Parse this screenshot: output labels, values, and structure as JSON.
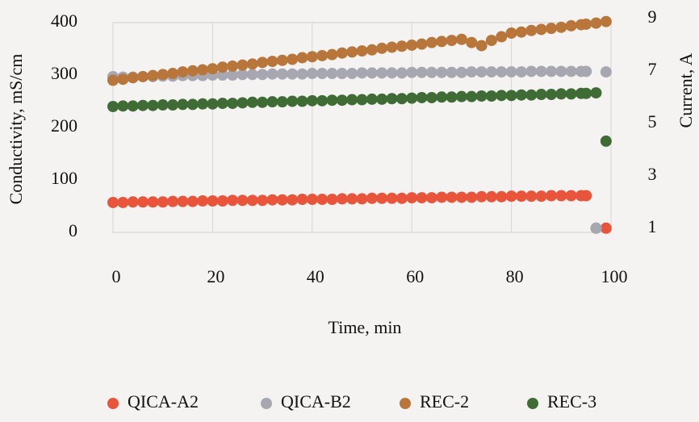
{
  "chart_data": {
    "type": "scatter",
    "x_label": "Time, min",
    "y_label": "Conductivity, mS/cm",
    "y2_label": "Current, A",
    "x": [
      0,
      2,
      4,
      6,
      8,
      10,
      12,
      14,
      16,
      18,
      20,
      22,
      24,
      26,
      28,
      30,
      32,
      34,
      36,
      38,
      40,
      42,
      44,
      46,
      48,
      50,
      52,
      54,
      56,
      58,
      60,
      62,
      64,
      66,
      68,
      70,
      72,
      74,
      76,
      78,
      80,
      82,
      84,
      86,
      88,
      90,
      92,
      94,
      95,
      97,
      99
    ],
    "series": [
      {
        "name": "QICA-A2",
        "color": "#e8553a",
        "values": [
          57,
          57,
          58,
          58,
          58,
          58,
          59,
          59,
          59,
          60,
          60,
          60,
          61,
          61,
          61,
          61,
          62,
          62,
          62,
          63,
          63,
          63,
          63,
          64,
          64,
          64,
          65,
          65,
          65,
          65,
          66,
          66,
          66,
          67,
          67,
          67,
          67,
          68,
          68,
          68,
          69,
          69,
          69,
          69,
          70,
          70,
          70,
          70,
          70,
          8,
          8
        ]
      },
      {
        "name": "QICA-B2",
        "color": "#a7a7b1",
        "values": [
          297,
          296,
          296,
          297,
          297,
          298,
          298,
          299,
          299,
          299,
          300,
          300,
          300,
          301,
          301,
          301,
          302,
          302,
          302,
          302,
          303,
          303,
          303,
          303,
          303,
          304,
          304,
          304,
          304,
          304,
          305,
          305,
          305,
          305,
          305,
          305,
          306,
          306,
          306,
          306,
          306,
          306,
          307,
          307,
          307,
          307,
          307,
          307,
          307,
          8,
          306
        ]
      },
      {
        "name": "REC-2",
        "color": "#b8763a",
        "values": [
          290,
          292,
          295,
          297,
          299,
          301,
          303,
          306,
          308,
          310,
          312,
          315,
          317,
          319,
          321,
          324,
          326,
          328,
          330,
          333,
          335,
          337,
          339,
          342,
          344,
          346,
          348,
          351,
          353,
          355,
          357,
          359,
          362,
          364,
          366,
          368,
          362,
          356,
          366,
          373,
          380,
          382,
          385,
          387,
          389,
          391,
          394,
          396,
          397,
          399,
          402
        ]
      },
      {
        "name": "REC-3",
        "color": "#3f6b35",
        "values": [
          240,
          241,
          241,
          242,
          242,
          243,
          243,
          244,
          244,
          245,
          245,
          246,
          246,
          247,
          248,
          248,
          249,
          249,
          250,
          250,
          251,
          251,
          252,
          252,
          253,
          253,
          254,
          254,
          255,
          255,
          256,
          257,
          257,
          258,
          258,
          259,
          259,
          260,
          260,
          261,
          261,
          262,
          262,
          263,
          263,
          264,
          264,
          265,
          265,
          266,
          174
        ]
      }
    ],
    "xlim": [
      0,
      100
    ],
    "xticks": [
      0,
      20,
      40,
      60,
      80,
      100
    ],
    "ylim": [
      0,
      400
    ],
    "yticks": [
      0,
      100,
      200,
      300,
      400
    ],
    "y2lim": [
      0.85,
      8.85
    ],
    "y2ticks": [
      1,
      3,
      5,
      7,
      9
    ],
    "grid": true
  }
}
